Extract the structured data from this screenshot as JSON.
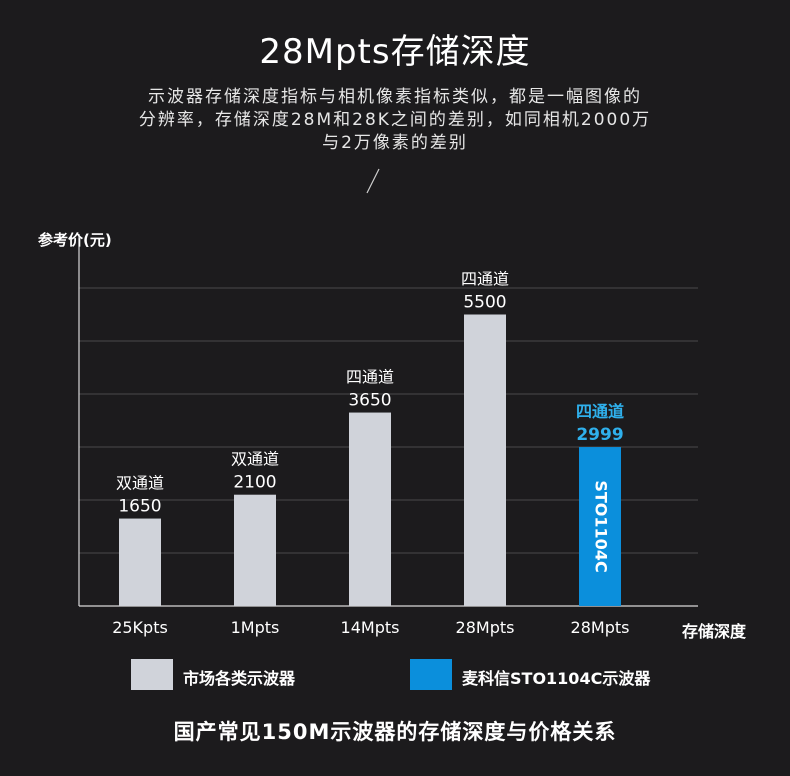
{
  "header": {
    "title": "28Mpts存储深度",
    "description_lines": [
      "示波器存储深度指标与相机像素指标类似，都是一幅图像的",
      "分辨率，存储深度28M和28K之间的差别，如同相机2000万",
      "与2万像素的差别"
    ]
  },
  "legend": {
    "items": [
      {
        "label": "市场各类示波器",
        "color": "#d0d3da"
      },
      {
        "label": "麦科信STO1104C示波器",
        "color": "#0b8fdc"
      }
    ]
  },
  "caption": "国产常见150M示波器的存储深度与价格关系",
  "chart_data": {
    "type": "bar",
    "ylabel": "参考价(元)",
    "xlabel": "存储深度",
    "ylim": [
      0,
      6000
    ],
    "grid": true,
    "categories": [
      "25Kpts",
      "1Mpts",
      "14Mpts",
      "28Mpts",
      "28Mpts"
    ],
    "values": [
      1650,
      2100,
      3650,
      5500,
      2999
    ],
    "bar_labels": [
      "双通道",
      "双通道",
      "四通道",
      "四通道",
      "四通道"
    ],
    "bar_inner_labels": [
      "",
      "",
      "",
      "",
      "STO1104C"
    ],
    "bar_colors": [
      "#d0d3da",
      "#d0d3da",
      "#d0d3da",
      "#d0d3da",
      "#0b8fdc"
    ],
    "highlight_label_color": "#2fb0ec",
    "legend_position": "bottom"
  }
}
